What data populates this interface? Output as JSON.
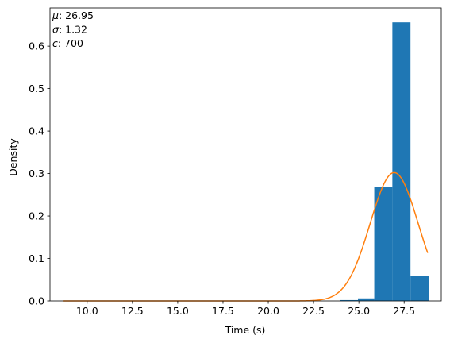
{
  "chart_data": {
    "type": "histogram",
    "title": "",
    "xlabel": "Time (s)",
    "ylabel": "Density",
    "xlim": [
      7.95,
      29.55
    ],
    "ylim": [
      0,
      0.69
    ],
    "xticks": [
      10.0,
      12.5,
      15.0,
      17.5,
      20.0,
      22.5,
      25.0,
      27.5
    ],
    "xtick_labels": [
      "10.0",
      "12.5",
      "15.0",
      "17.5",
      "20.0",
      "22.5",
      "25.0",
      "27.5"
    ],
    "yticks": [
      0.0,
      0.1,
      0.2,
      0.3,
      0.4,
      0.5,
      0.6
    ],
    "ytick_labels": [
      "0.0",
      "0.1",
      "0.2",
      "0.3",
      "0.4",
      "0.5",
      "0.6"
    ],
    "bars": [
      {
        "x0": 23.95,
        "x1": 24.95,
        "density": 0.002
      },
      {
        "x0": 24.95,
        "x1": 25.85,
        "density": 0.006
      },
      {
        "x0": 25.85,
        "x1": 26.85,
        "density": 0.268
      },
      {
        "x0": 26.85,
        "x1": 27.85,
        "density": 0.656
      },
      {
        "x0": 27.85,
        "x1": 28.85,
        "density": 0.058
      }
    ],
    "bar_color": "#1f77b4",
    "fit": {
      "distribution": "normal",
      "mu": 26.95,
      "sigma": 1.32,
      "x_range": [
        8.7,
        28.8
      ],
      "color": "#ff7f0e"
    },
    "annotations": [
      {
        "symbol": "μ",
        "value": "26.95"
      },
      {
        "symbol": "σ",
        "value": "1.32"
      },
      {
        "symbol": "c",
        "value": "700"
      }
    ],
    "grid": false
  }
}
